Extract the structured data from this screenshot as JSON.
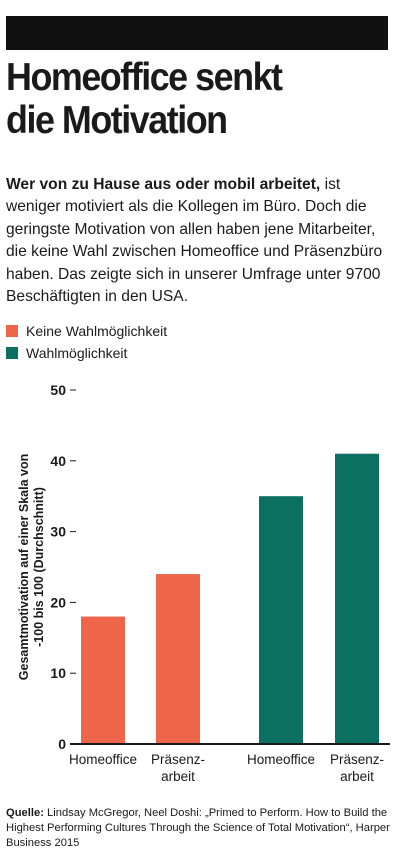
{
  "header": {
    "title_line1": "Homeoffice senkt",
    "title_line2": "die Motivation"
  },
  "intro": {
    "lead": "Wer von zu Hause aus oder mobil arbeitet,",
    "text": " ist weniger motiviert als die Kollegen im Büro. Doch die geringste Motivation von allen haben jene Mitarbeiter, die keine Wahl zwischen Homeoffice und Präsenzbüro haben. Das zeigte sich in unserer Umfrage unter 9700 Beschäftigten in den USA."
  },
  "legend": [
    {
      "label": "Keine Wahlmöglichkeit",
      "color": "#ee654a"
    },
    {
      "label": "Wahlmöglichkeit",
      "color": "#0b7062"
    }
  ],
  "chart_data": {
    "type": "bar",
    "ylabel_line1": "Gesamtmotivation auf einer Skala von",
    "ylabel_line2": "-100 bis 100 (Durchschnitt)",
    "ylim": [
      0,
      50
    ],
    "yticks": [
      0,
      10,
      20,
      30,
      40,
      50
    ],
    "grid": false,
    "groups": [
      {
        "name": "Keine Wahlmöglichkeit",
        "color": "#ee654a",
        "bars": [
          {
            "label_lines": [
              "Homeoffice"
            ],
            "value": 18
          },
          {
            "label_lines": [
              "Präsenz-",
              "arbeit"
            ],
            "value": 24
          }
        ]
      },
      {
        "name": "Wahlmöglichkeit",
        "color": "#0b7062",
        "bars": [
          {
            "label_lines": [
              "Homeoffice"
            ],
            "value": 35
          },
          {
            "label_lines": [
              "Präsenz-",
              "arbeit"
            ],
            "value": 41
          }
        ]
      }
    ]
  },
  "source": {
    "label": "Quelle:",
    "text": " Lindsay McGregor, Neel Doshi: „Primed to Perform. How to Build the Highest Performing Cultures Through the Science of Total Motivation“, Harper Business 2015"
  }
}
